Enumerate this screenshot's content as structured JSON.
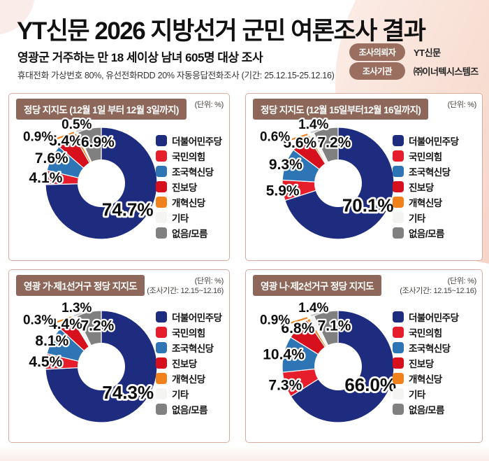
{
  "header": {
    "title_bold": "YT신문 2026 지방선거",
    "title_light": " 군민 여론조사 결과",
    "subtitle": "영광군 거주하는 만 18 세이상 남녀 605명 대상 조사",
    "method": "휴대전화 가상번호 80%, 유선전화RDD 20% 자동응답전화조사 (기간: 25.12.15-25.12.16)",
    "badges": [
      {
        "label": "조사의뢰자",
        "value": "YT신문"
      },
      {
        "label": "조사기관",
        "value": "㈜이너텍시스템즈"
      }
    ]
  },
  "legend": {
    "items": [
      "더불어민주당",
      "국민의힘",
      "조국혁신당",
      "진보당",
      "개혁신당",
      "기타",
      "없음/모름"
    ]
  },
  "palette": {
    "series": [
      "#1e2c80",
      "#e61e2b",
      "#2e75b6",
      "#d6101c",
      "#f0811c",
      "#f4f4f3",
      "#808080"
    ],
    "title_bar": "#8d675a",
    "badge": "#9a6f5f",
    "panel_border": "#d9aba0",
    "leader_small_orange": "#f0811c",
    "leader_small_etc": "#cccccc"
  },
  "chart_data": [
    {
      "type": "pie",
      "title": "정당 지지도 (12월 1일 부터 12월 3일까지)",
      "unit": "(단위: %)",
      "period": "",
      "categories": [
        "더불어민주당",
        "국민의힘",
        "조국혁신당",
        "진보당",
        "개혁신당",
        "기타",
        "없음/모름"
      ],
      "values": [
        74.7,
        4.1,
        7.6,
        5.4,
        0.9,
        0.5,
        6.9
      ],
      "hole": 0.42,
      "start": "top",
      "direction": "clockwise",
      "legend_position": "right"
    },
    {
      "type": "pie",
      "title": "정당 지지도 (12월 15일부터12월 16일까지)",
      "unit": "(단위: %)",
      "period": "",
      "categories": [
        "더불어민주당",
        "국민의힘",
        "조국혁신당",
        "진보당",
        "개혁신당",
        "기타",
        "없음/모름"
      ],
      "values": [
        70.1,
        5.9,
        9.3,
        5.6,
        0.6,
        1.4,
        7.2
      ],
      "hole": 0.42,
      "start": "top",
      "direction": "clockwise",
      "legend_position": "right"
    },
    {
      "type": "pie",
      "title": "영광 가·제1선거구 정당 지지도",
      "unit": "(단위: %)",
      "period": "(조사기간: 12.15~12.16)",
      "categories": [
        "더불어민주당",
        "국민의힘",
        "조국혁신당",
        "진보당",
        "개혁신당",
        "기타",
        "없음/모름"
      ],
      "values": [
        74.3,
        4.5,
        8.1,
        4.4,
        0.3,
        1.3,
        7.2
      ],
      "hole": 0.42,
      "start": "top",
      "direction": "clockwise",
      "legend_position": "right"
    },
    {
      "type": "pie",
      "title": "영광 나·제2선거구 정당 지지도",
      "unit": "(단위: %)",
      "period": "(조사기간: 12.15~12.16)",
      "categories": [
        "더불어민주당",
        "국민의힘",
        "조국혁신당",
        "진보당",
        "개혁신당",
        "기타",
        "없음/모름"
      ],
      "values": [
        66.0,
        7.3,
        10.4,
        6.8,
        0.9,
        1.4,
        7.1
      ],
      "hole": 0.42,
      "start": "top",
      "direction": "clockwise",
      "legend_position": "right"
    }
  ]
}
